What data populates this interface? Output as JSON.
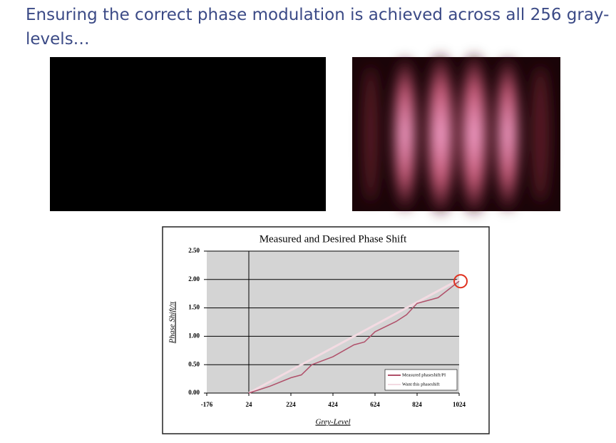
{
  "slide_title": "Ensuring the correct phase modulation is achieved across all 256 gray-levels…",
  "chart_data": {
    "type": "line",
    "title": "Measured and Desired Phase Shift",
    "x_label": "Grey-Level",
    "y_label": "Phase Shift/π",
    "xlim": [
      -176,
      1024
    ],
    "xticks": [
      -176,
      24,
      224,
      424,
      624,
      824,
      1024
    ],
    "ylim": [
      0,
      2.5
    ],
    "yticks": [
      {
        "value": 0,
        "label": "0.00"
      },
      {
        "value": 0.5,
        "label": "0.50"
      },
      {
        "value": 1,
        "label": "1.00"
      },
      {
        "value": 1.5,
        "label": "1.50"
      },
      {
        "value": 2,
        "label": "2.00"
      },
      {
        "value": 2.5,
        "label": "2.50"
      }
    ],
    "grid": true,
    "y_axis_at": 24,
    "legend": "lower right",
    "series": [
      {
        "name": "Measured phaseshift/PI",
        "color": "#b0506a",
        "x": [
          24,
          124,
          224,
          274,
          324,
          424,
          524,
          574,
          624,
          724,
          774,
          824,
          924,
          1024
        ],
        "values": [
          0,
          0.12,
          0.27,
          0.32,
          0.5,
          0.64,
          0.85,
          0.9,
          1.08,
          1.26,
          1.38,
          1.58,
          1.68,
          1.97
        ]
      },
      {
        "name": "Want this phaseshift",
        "color": "#f3dbe2",
        "x": [
          24,
          1024
        ],
        "values": [
          0,
          2
        ]
      }
    ]
  }
}
